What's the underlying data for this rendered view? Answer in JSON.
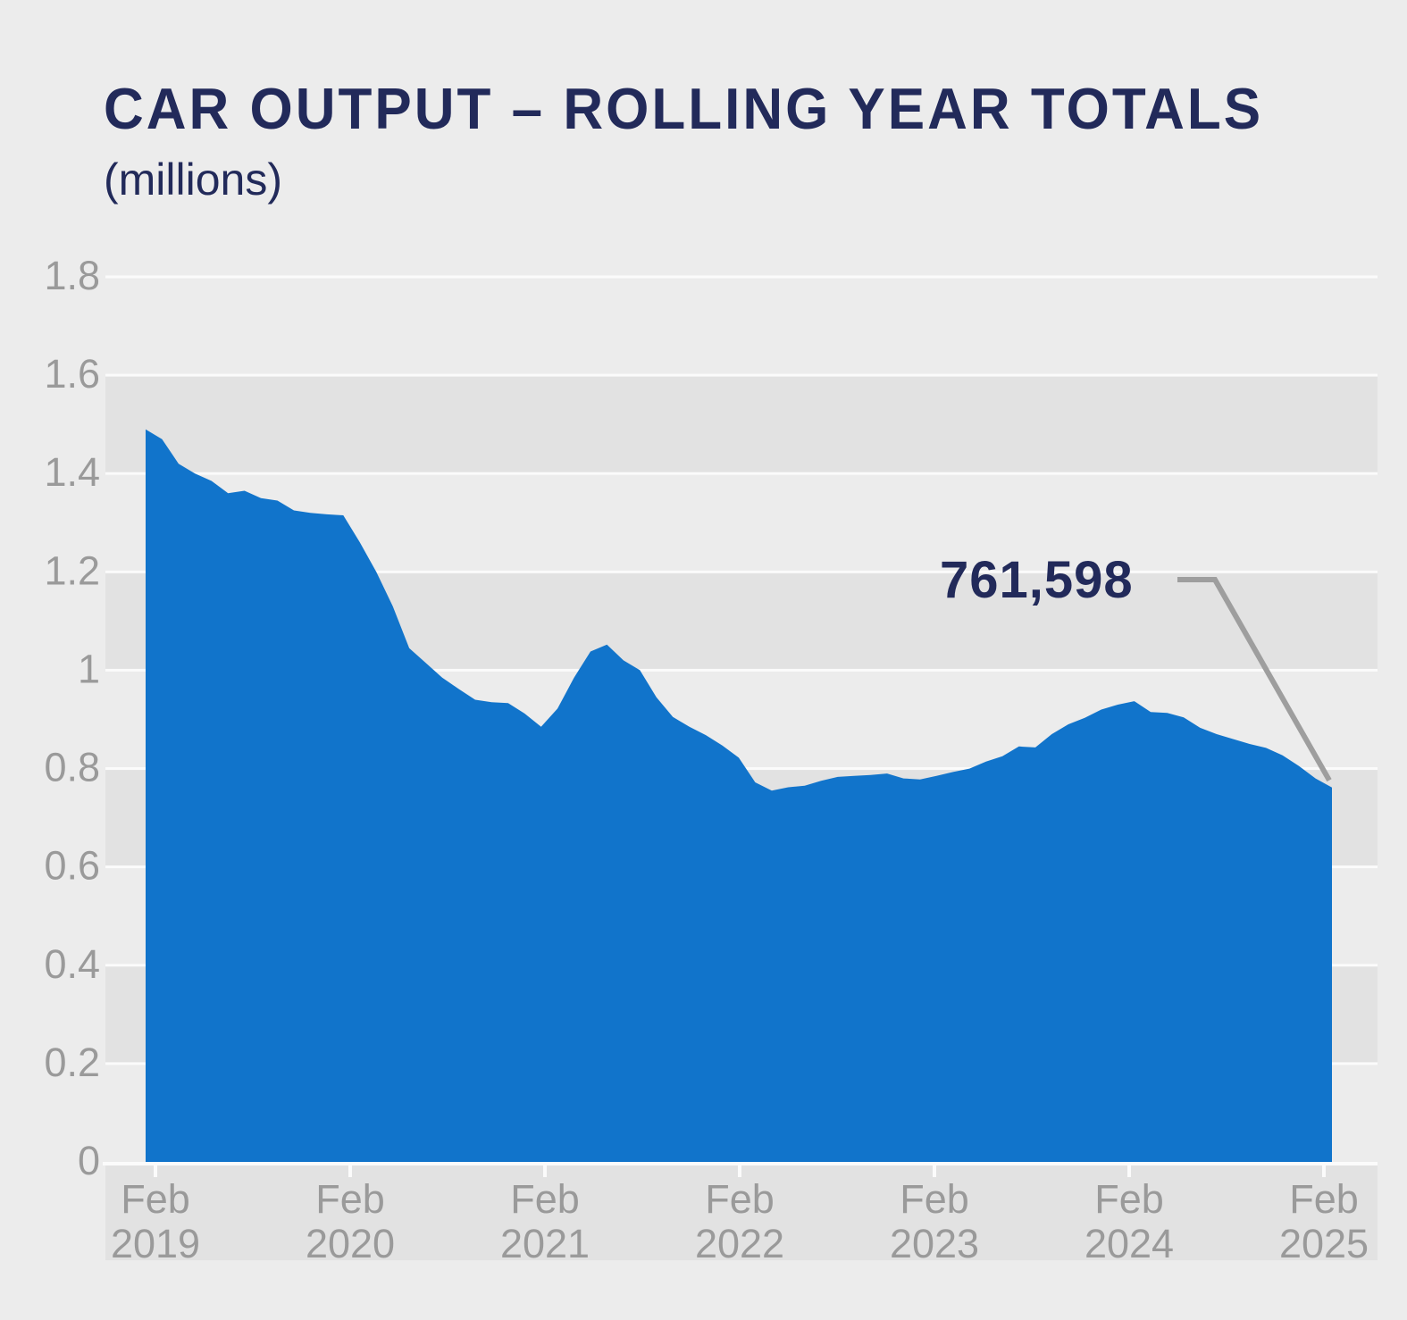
{
  "header": {
    "title": "CAR OUTPUT – ROLLING YEAR TOTALS",
    "subtitle": "(millions)"
  },
  "chart_data": {
    "type": "area",
    "title": "CAR OUTPUT – ROLLING YEAR TOTALS",
    "subtitle": "(millions)",
    "unit": "millions of cars, rolling 12-month total",
    "frequency": "monthly",
    "x_start": "2019-02",
    "x_end": "2025-02",
    "values": [
      1.49,
      1.47,
      1.42,
      1.4,
      1.385,
      1.36,
      1.365,
      1.35,
      1.345,
      1.325,
      1.32,
      1.317,
      1.315,
      1.26,
      1.2,
      1.13,
      1.045,
      1.015,
      0.985,
      0.962,
      0.94,
      0.935,
      0.933,
      0.912,
      0.885,
      0.922,
      0.985,
      1.038,
      1.052,
      1.02,
      1.0,
      0.945,
      0.905,
      0.885,
      0.868,
      0.847,
      0.822,
      0.772,
      0.755,
      0.762,
      0.765,
      0.775,
      0.783,
      0.785,
      0.787,
      0.79,
      0.78,
      0.778,
      0.785,
      0.793,
      0.8,
      0.814,
      0.825,
      0.845,
      0.843,
      0.87,
      0.89,
      0.903,
      0.92,
      0.93,
      0.937,
      0.915,
      0.913,
      0.904,
      0.883,
      0.87,
      0.86,
      0.85,
      0.842,
      0.827,
      0.805,
      0.78,
      0.7616
    ],
    "ylim": [
      0,
      1.8
    ],
    "y_tick_step": 0.2,
    "y_tick_labels": [
      "0",
      "0.2",
      "0.4",
      "0.6",
      "0.8",
      "1",
      "1.2",
      "1.4",
      "1.6",
      "1.8"
    ],
    "x_tick_labels": [
      {
        "line1": "Feb",
        "line2": "2019"
      },
      {
        "line1": "Feb",
        "line2": "2020"
      },
      {
        "line1": "Feb",
        "line2": "2021"
      },
      {
        "line1": "Feb",
        "line2": "2022"
      },
      {
        "line1": "Feb",
        "line2": "2023"
      },
      {
        "line1": "Feb",
        "line2": "2024"
      },
      {
        "line1": "Feb",
        "line2": "2025"
      }
    ],
    "annotation": {
      "label": "761,598",
      "applies_to": "Feb 2025",
      "value_millions": 0.761598
    },
    "legend": "none",
    "grid": "horizontal white gridlines every 0.2 with alternating gray bands",
    "colors": {
      "area": "#1174cb",
      "band_dark": "#e2e2e2",
      "background": "#ececec",
      "gridline": "#fbfbfb",
      "axis_label": "#9a9a9a",
      "title": "#222a5a",
      "annotation_text": "#222a5a",
      "annotation_leader": "#9e9e9e"
    }
  }
}
